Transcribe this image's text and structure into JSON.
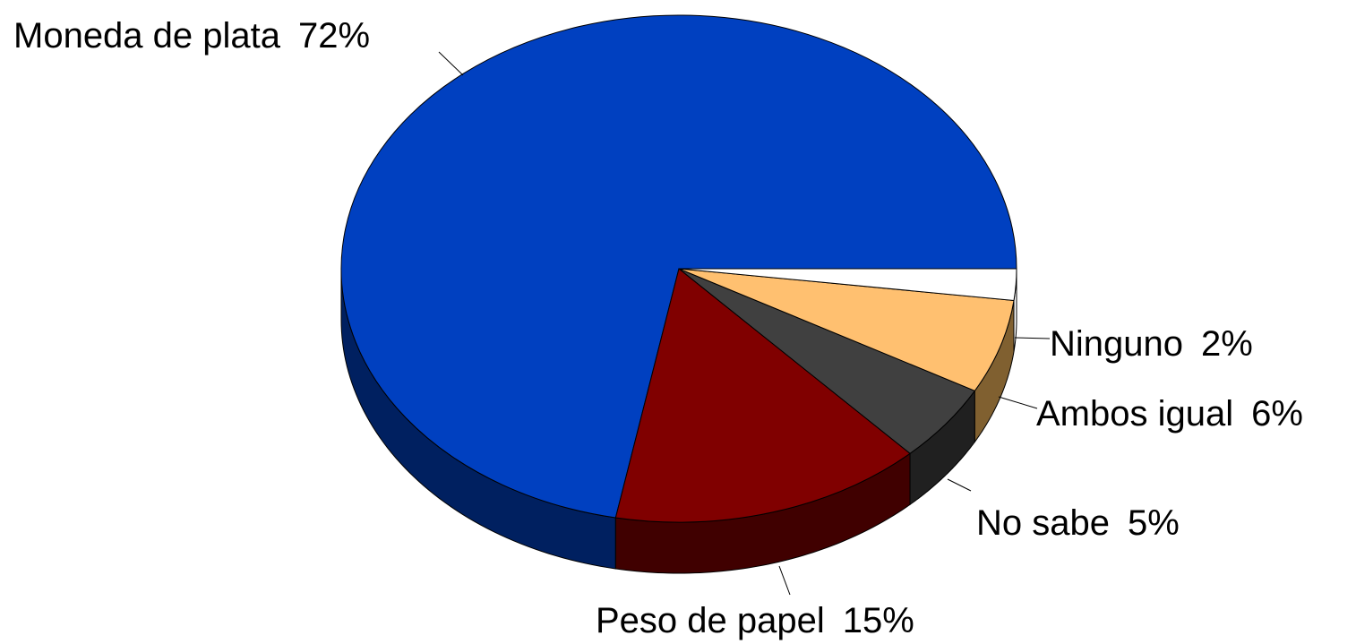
{
  "chart_data": {
    "type": "pie",
    "categories": [
      "Moneda de plata",
      "Peso de papel",
      "No sabe",
      "Ambos igual",
      "Ninguno"
    ],
    "values": [
      72,
      15,
      5,
      6,
      2
    ],
    "value_labels": [
      "72%",
      "15%",
      "5%",
      "6%",
      "2%"
    ],
    "colors": [
      "#0040c0",
      "#800000",
      "#404040",
      "#ffc070",
      "#ffffff"
    ],
    "side_colors": [
      "#002060",
      "#400000",
      "#202020",
      "#806030",
      "#ffffff"
    ]
  }
}
